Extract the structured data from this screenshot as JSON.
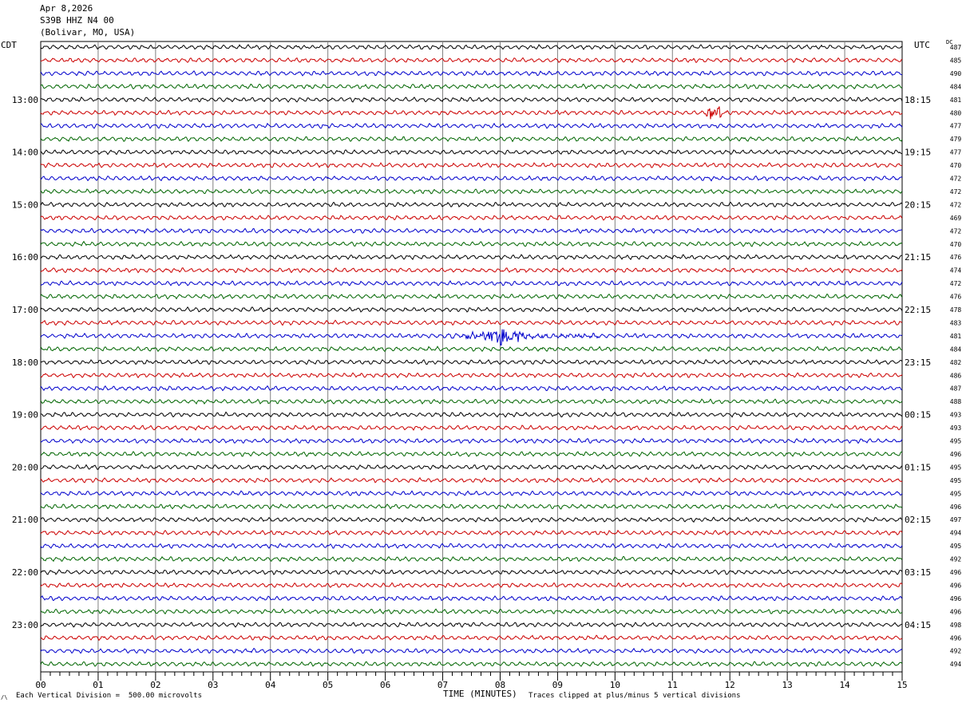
{
  "header": {
    "date": "Apr 8,2026",
    "station": "S39B HHZ N4 00",
    "location": "(Bolivar, MO, USA)"
  },
  "left_label": "CDT",
  "right_label": "UTC",
  "dc_label": "DC",
  "footer": {
    "xlabel": "TIME (MINUTES)",
    "scale_note": "Each Vertical Division =  500.00 microvolts",
    "clip_note": "Traces clipped at plus/minus 5 vertical divisions",
    "logo": "/\\"
  },
  "colors": {
    "cycle": [
      "#000000",
      "#cc0000",
      "#0000cc",
      "#006600"
    ],
    "grid": "#808080"
  },
  "chart_data": {
    "type": "line",
    "title": "S39B HHZ N4 00",
    "xlabel": "TIME (MINUTES)",
    "xlim": [
      0,
      15
    ],
    "x_ticks": [
      "00",
      "01",
      "02",
      "03",
      "04",
      "05",
      "06",
      "07",
      "08",
      "09",
      "10",
      "11",
      "12",
      "13",
      "14",
      "15"
    ],
    "rows": 48,
    "minutes_per_row": 15,
    "left_hour_labels": [
      "13:00",
      "14:00",
      "15:00",
      "16:00",
      "17:00",
      "18:00",
      "19:00",
      "20:00",
      "21:00",
      "22:00",
      "23:00"
    ],
    "right_hour_labels": [
      "18:15",
      "19:15",
      "20:15",
      "21:15",
      "22:15",
      "23:15",
      "00:15",
      "01:15",
      "02:15",
      "03:15",
      "04:15"
    ],
    "dc_offsets": [
      487,
      485,
      490,
      484,
      481,
      480,
      477,
      479,
      477,
      470,
      472,
      472,
      472,
      469,
      472,
      470,
      476,
      474,
      472,
      476,
      478,
      483,
      481,
      484,
      482,
      486,
      487,
      488,
      493,
      493,
      495,
      496,
      495,
      495,
      495,
      496,
      497,
      494,
      495,
      492,
      496,
      496,
      496,
      496,
      498,
      496,
      492,
      494
    ],
    "events": [
      {
        "row": 22,
        "start_min": 7.1,
        "peak_min": 8.0,
        "end_min": 9.7,
        "label": "seismic event"
      },
      {
        "row": 5,
        "start_min": 11.55,
        "peak_min": 11.65,
        "end_min": 11.85,
        "label": "spike"
      }
    ],
    "scale": "500.00 microvolts per vertical division",
    "clip": "plus/minus 5 vertical divisions"
  }
}
